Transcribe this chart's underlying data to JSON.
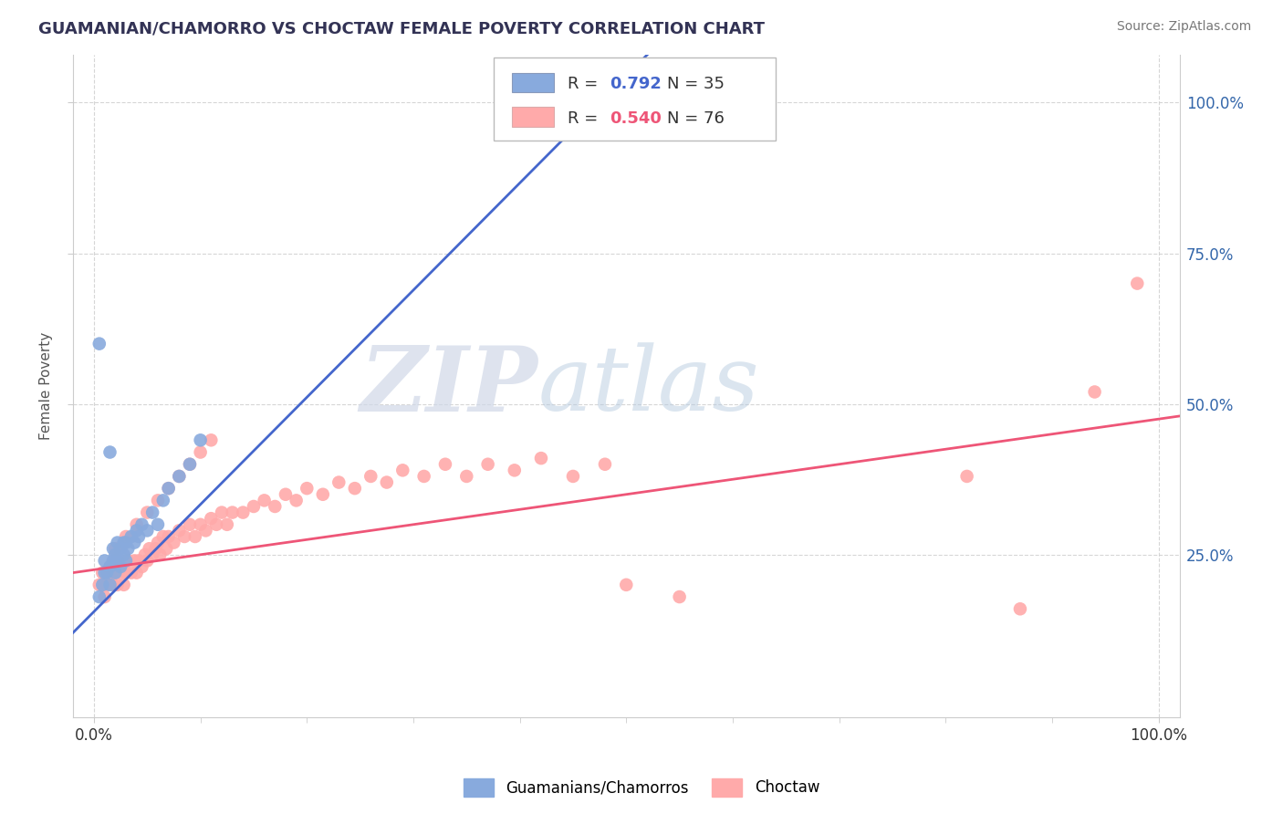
{
  "title": "GUAMANIAN/CHAMORRO VS CHOCTAW FEMALE POVERTY CORRELATION CHART",
  "source": "Source: ZipAtlas.com",
  "ylabel": "Female Poverty",
  "xlim": [
    -0.02,
    1.02
  ],
  "ylim": [
    -0.02,
    1.08
  ],
  "xtick_labels": [
    "0.0%",
    "100.0%"
  ],
  "ytick_right_labels": [
    "25.0%",
    "50.0%",
    "75.0%",
    "100.0%"
  ],
  "ytick_positions": [
    0.25,
    0.5,
    0.75,
    1.0
  ],
  "legend_labels": [
    "Guamanians/Chamorros",
    "Choctaw"
  ],
  "blue_R": "0.792",
  "blue_N": "35",
  "pink_R": "0.540",
  "pink_N": "76",
  "blue_color": "#88AADD",
  "pink_color": "#FFAAAA",
  "blue_line_color": "#4466CC",
  "pink_line_color": "#EE5577",
  "watermark_zip": "ZIP",
  "watermark_atlas": "atlas",
  "blue_x": [
    0.005,
    0.008,
    0.01,
    0.01,
    0.012,
    0.015,
    0.015,
    0.018,
    0.018,
    0.02,
    0.02,
    0.022,
    0.022,
    0.025,
    0.025,
    0.028,
    0.028,
    0.03,
    0.03,
    0.032,
    0.035,
    0.038,
    0.04,
    0.042,
    0.045,
    0.05,
    0.055,
    0.06,
    0.065,
    0.07,
    0.08,
    0.09,
    0.1,
    0.005,
    0.015
  ],
  "blue_y": [
    0.18,
    0.2,
    0.22,
    0.24,
    0.22,
    0.2,
    0.23,
    0.24,
    0.26,
    0.22,
    0.25,
    0.24,
    0.27,
    0.23,
    0.26,
    0.25,
    0.27,
    0.24,
    0.27,
    0.26,
    0.28,
    0.27,
    0.29,
    0.28,
    0.3,
    0.29,
    0.32,
    0.3,
    0.34,
    0.36,
    0.38,
    0.4,
    0.44,
    0.6,
    0.42
  ],
  "pink_x": [
    0.005,
    0.008,
    0.01,
    0.012,
    0.015,
    0.018,
    0.02,
    0.022,
    0.025,
    0.028,
    0.03,
    0.032,
    0.035,
    0.038,
    0.04,
    0.042,
    0.045,
    0.048,
    0.05,
    0.052,
    0.055,
    0.058,
    0.06,
    0.062,
    0.065,
    0.068,
    0.07,
    0.075,
    0.08,
    0.085,
    0.09,
    0.095,
    0.1,
    0.105,
    0.11,
    0.115,
    0.12,
    0.125,
    0.13,
    0.14,
    0.15,
    0.16,
    0.17,
    0.18,
    0.19,
    0.2,
    0.215,
    0.23,
    0.245,
    0.26,
    0.275,
    0.29,
    0.31,
    0.33,
    0.35,
    0.37,
    0.395,
    0.42,
    0.45,
    0.48,
    0.02,
    0.03,
    0.04,
    0.05,
    0.06,
    0.07,
    0.08,
    0.09,
    0.1,
    0.11,
    0.5,
    0.55,
    0.82,
    0.87,
    0.94,
    0.98
  ],
  "pink_y": [
    0.2,
    0.22,
    0.18,
    0.2,
    0.22,
    0.2,
    0.22,
    0.2,
    0.22,
    0.2,
    0.22,
    0.24,
    0.22,
    0.24,
    0.22,
    0.24,
    0.23,
    0.25,
    0.24,
    0.26,
    0.25,
    0.26,
    0.27,
    0.25,
    0.28,
    0.26,
    0.28,
    0.27,
    0.29,
    0.28,
    0.3,
    0.28,
    0.3,
    0.29,
    0.31,
    0.3,
    0.32,
    0.3,
    0.32,
    0.32,
    0.33,
    0.34,
    0.33,
    0.35,
    0.34,
    0.36,
    0.35,
    0.37,
    0.36,
    0.38,
    0.37,
    0.39,
    0.38,
    0.4,
    0.38,
    0.4,
    0.39,
    0.41,
    0.38,
    0.4,
    0.26,
    0.28,
    0.3,
    0.32,
    0.34,
    0.36,
    0.38,
    0.4,
    0.42,
    0.44,
    0.2,
    0.18,
    0.38,
    0.16,
    0.52,
    0.7
  ],
  "blue_line_x": [
    -0.02,
    0.52
  ],
  "blue_line_y": [
    0.12,
    1.08
  ],
  "pink_line_x": [
    -0.02,
    1.02
  ],
  "pink_line_y": [
    0.22,
    0.48
  ]
}
